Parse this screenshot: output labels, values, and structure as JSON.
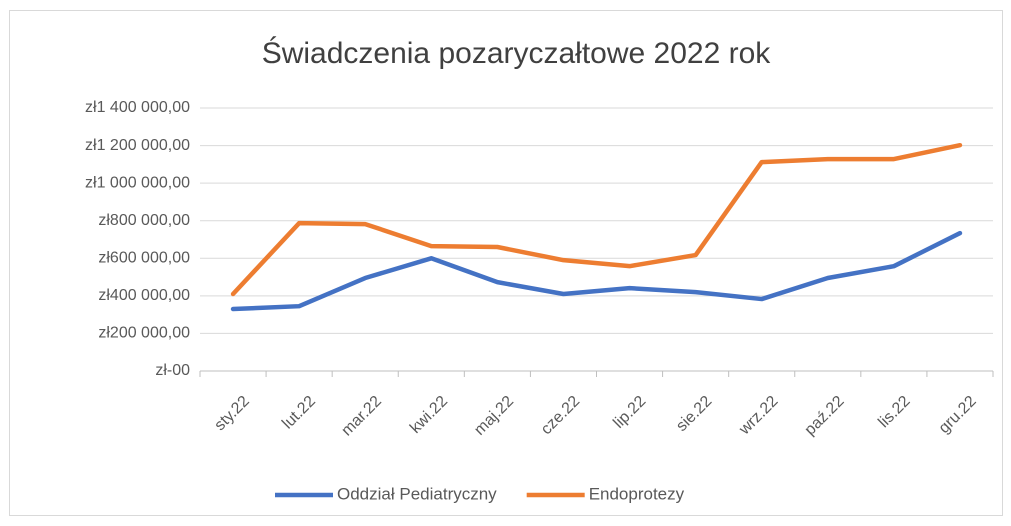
{
  "chart_data": {
    "type": "line",
    "title": "Świadczenia pozaryczałtowe 2022 rok",
    "categories": [
      "sty.22",
      "lut.22",
      "mar.22",
      "kwi.22",
      "maj.22",
      "cze.22",
      "lip.22",
      "sie.22",
      "wrz.22",
      "paź.22",
      "lis.22",
      "gru.22"
    ],
    "series": [
      {
        "name": "Oddział Pediatryczny",
        "color": "#4472c4",
        "values": [
          330000,
          345000,
          495000,
          600000,
          473000,
          410000,
          441000,
          420000,
          383000,
          495000,
          558000,
          734000
        ]
      },
      {
        "name": "Endoprotezy",
        "color": "#ed7d31",
        "values": [
          410000,
          787000,
          782000,
          665000,
          660000,
          590000,
          558000,
          617000,
          1112000,
          1128000,
          1128000,
          1202000
        ]
      }
    ],
    "ylim": [
      0,
      1400000
    ],
    "yticks": [
      {
        "value": 0,
        "label": "zł-00"
      },
      {
        "value": 200000,
        "label": "zł200 000,00"
      },
      {
        "value": 400000,
        "label": "zł400 000,00"
      },
      {
        "value": 600000,
        "label": "zł600 000,00"
      },
      {
        "value": 800000,
        "label": "zł800 000,00"
      },
      {
        "value": 1000000,
        "label": "zł1 000 000,00"
      },
      {
        "value": 1200000,
        "label": "zł1 200 000,00"
      },
      {
        "value": 1400000,
        "label": "zł1 400 000,00"
      }
    ],
    "grid": true,
    "legend": "bottom"
  }
}
